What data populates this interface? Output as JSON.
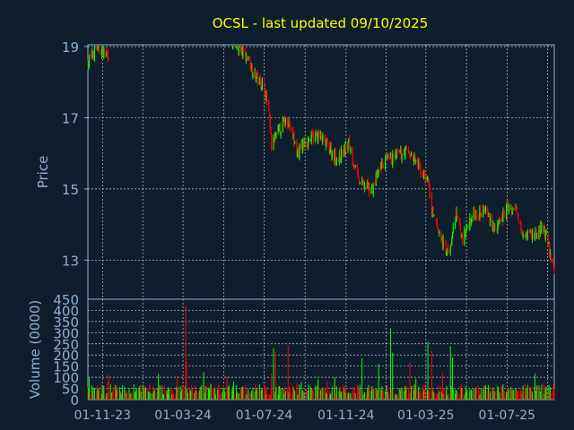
{
  "chart_data": [
    {
      "type": "candlestick",
      "title": "OCSL - last updated 09/10/2025",
      "ylabel": "Price",
      "ylim": [
        11.9,
        19.05
      ],
      "yticks": [
        "19",
        "17",
        "15",
        "13"
      ],
      "grid": true,
      "colors": {
        "up": "#00ff00",
        "down": "#ff0000",
        "title": "#ffff00",
        "axis_text": "#8fb0d0",
        "frame": "#8fb0d0",
        "grid": "#c8c8c8"
      },
      "anchors": [
        {
          "date": "2023-10-10",
          "price": 18.55
        },
        {
          "date": "2023-10-25",
          "price": 19.0
        },
        {
          "date": "2023-11-05",
          "price": 18.8
        },
        {
          "date": "2024-05-20",
          "price": 19.0
        },
        {
          "date": "2024-06-05",
          "price": 18.7
        },
        {
          "date": "2024-06-20",
          "price": 18.1
        },
        {
          "date": "2024-07-01",
          "price": 17.9
        },
        {
          "date": "2024-07-08",
          "price": 17.1
        },
        {
          "date": "2024-07-12",
          "price": 16.2
        },
        {
          "date": "2024-07-25",
          "price": 16.7
        },
        {
          "date": "2024-08-05",
          "price": 17.0
        },
        {
          "date": "2024-08-20",
          "price": 16.0
        },
        {
          "date": "2024-09-05",
          "price": 16.4
        },
        {
          "date": "2024-09-20",
          "price": 16.5
        },
        {
          "date": "2024-10-05",
          "price": 16.2
        },
        {
          "date": "2024-10-20",
          "price": 15.8
        },
        {
          "date": "2024-11-05",
          "price": 16.3
        },
        {
          "date": "2024-11-20",
          "price": 15.2
        },
        {
          "date": "2024-12-10",
          "price": 15.0
        },
        {
          "date": "2024-12-25",
          "price": 15.7
        },
        {
          "date": "2025-01-15",
          "price": 15.9
        },
        {
          "date": "2025-02-01",
          "price": 16.1
        },
        {
          "date": "2025-02-15",
          "price": 15.7
        },
        {
          "date": "2025-03-05",
          "price": 15.2
        },
        {
          "date": "2025-03-10",
          "price": 14.3
        },
        {
          "date": "2025-03-20",
          "price": 13.8
        },
        {
          "date": "2025-04-05",
          "price": 13.1
        },
        {
          "date": "2025-04-15",
          "price": 14.3
        },
        {
          "date": "2025-04-25",
          "price": 13.6
        },
        {
          "date": "2025-05-10",
          "price": 14.3
        },
        {
          "date": "2025-05-30",
          "price": 14.4
        },
        {
          "date": "2025-06-15",
          "price": 13.8
        },
        {
          "date": "2025-07-01",
          "price": 14.5
        },
        {
          "date": "2025-07-15",
          "price": 14.4
        },
        {
          "date": "2025-07-25",
          "price": 13.8
        },
        {
          "date": "2025-08-10",
          "price": 13.7
        },
        {
          "date": "2025-08-25",
          "price": 13.9
        },
        {
          "date": "2025-09-05",
          "price": 13.1
        },
        {
          "date": "2025-09-10",
          "price": 12.6
        }
      ]
    },
    {
      "type": "bar",
      "ylabel": "Volume (0000)",
      "ylim": [
        0,
        450
      ],
      "yticks": [
        "450",
        "400",
        "350",
        "300",
        "250",
        "200",
        "150",
        "100",
        "50",
        "0"
      ],
      "grid": true,
      "typical_volume": 55,
      "spikes": [
        {
          "date": "2024-03-05",
          "value": 420
        },
        {
          "date": "2024-03-06",
          "value": 170
        },
        {
          "date": "2024-07-15",
          "value": 230
        },
        {
          "date": "2024-07-18",
          "value": 215
        },
        {
          "date": "2024-08-06",
          "value": 240
        },
        {
          "date": "2024-11-25",
          "value": 185
        },
        {
          "date": "2024-12-20",
          "value": 160
        },
        {
          "date": "2025-01-07",
          "value": 320
        },
        {
          "date": "2025-01-10",
          "value": 210
        },
        {
          "date": "2025-02-05",
          "value": 165
        },
        {
          "date": "2025-03-04",
          "value": 260
        },
        {
          "date": "2025-03-10",
          "value": 220
        },
        {
          "date": "2025-04-07",
          "value": 240
        },
        {
          "date": "2025-04-10",
          "value": 190
        }
      ]
    }
  ],
  "x_axis": {
    "labels": [
      "01-11-23",
      "01-03-24",
      "01-07-24",
      "01-11-24",
      "01-03-25",
      "01-07-25"
    ],
    "label_dates": [
      "2023-11-01",
      "2024-03-01",
      "2024-07-01",
      "2024-11-01",
      "2025-03-01",
      "2025-07-01"
    ],
    "range": [
      "2023-10-10",
      "2025-09-10"
    ]
  }
}
